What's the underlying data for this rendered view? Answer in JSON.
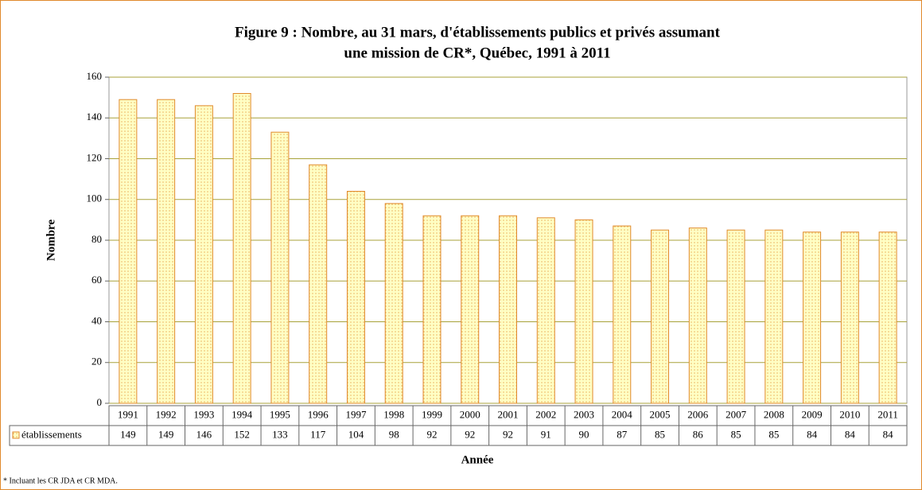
{
  "chart_data": {
    "type": "bar",
    "title": [
      "Figure 9 : Nombre, au 31 mars, d'établissements publics et privés assumant",
      "une mission de CR*, Québec, 1991 à 2011"
    ],
    "categories": [
      "1991",
      "1992",
      "1993",
      "1994",
      "1995",
      "1996",
      "1997",
      "1998",
      "1999",
      "2000",
      "2001",
      "2002",
      "2003",
      "2004",
      "2005",
      "2006",
      "2007",
      "2008",
      "2009",
      "2010",
      "2011"
    ],
    "series": [
      {
        "name": "établissements",
        "color": "#e0892c",
        "values": [
          149,
          149,
          146,
          152,
          133,
          117,
          104,
          98,
          92,
          92,
          92,
          91,
          90,
          87,
          85,
          86,
          85,
          85,
          84,
          84,
          84
        ]
      }
    ],
    "ylim": [
      0,
      160
    ],
    "yticks": [
      0,
      20,
      40,
      60,
      80,
      100,
      120,
      140,
      160
    ],
    "grid": true,
    "y_label": "Nombre",
    "x_label": "Année",
    "note": "* Incluant les CR JDA et CR MDA."
  }
}
